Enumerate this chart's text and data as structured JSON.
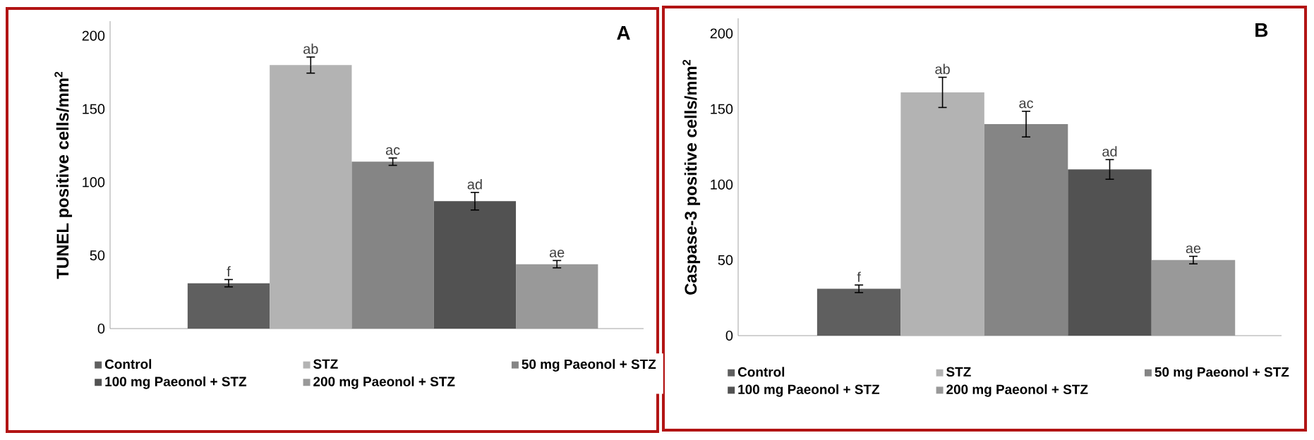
{
  "chart_data": [
    {
      "type": "bar",
      "ylabel": "TUNEL positive cells/mm$^{2}$",
      "annotations": [
        "A"
      ],
      "categories": [
        null
      ],
      "ylim": [
        0,
        210
      ],
      "yticks": [
        0,
        50,
        100,
        150,
        200
      ],
      "legend": "bottom",
      "series": [
        {
          "name": "Control",
          "color": "#5f5f5f",
          "values": [
            31
          ],
          "errors": [
            2.5
          ],
          "value_labels": [
            "f"
          ]
        },
        {
          "name": "STZ",
          "color": "#b3b3b3",
          "values": [
            180
          ],
          "errors": [
            5.5
          ],
          "value_labels": [
            "ab"
          ]
        },
        {
          "name": "50 mg Paeonol + STZ",
          "color": "#858585",
          "values": [
            114
          ],
          "errors": [
            2.5
          ],
          "value_labels": [
            "ac"
          ]
        },
        {
          "name": "100 mg Paeonol + STZ",
          "color": "#525252",
          "values": [
            87
          ],
          "errors": [
            6
          ],
          "value_labels": [
            "ad"
          ]
        },
        {
          "name": "200 mg Paeonol + STZ",
          "color": "#999999",
          "values": [
            44
          ],
          "errors": [
            2.5
          ],
          "value_labels": [
            "ae"
          ]
        }
      ]
    },
    {
      "type": "bar",
      "ylabel": "Caspase-3 positive cells/mm$^{2}$",
      "annotations": [
        "B"
      ],
      "categories": [
        null
      ],
      "ylim": [
        0,
        210
      ],
      "yticks": [
        0,
        50,
        100,
        150,
        200
      ],
      "legend": "bottom",
      "series": [
        {
          "name": "Control",
          "color": "#5f5f5f",
          "values": [
            31
          ],
          "errors": [
            2.5
          ],
          "value_labels": [
            "f"
          ]
        },
        {
          "name": "STZ",
          "color": "#b3b3b3",
          "values": [
            161
          ],
          "errors": [
            10
          ],
          "value_labels": [
            "ab"
          ]
        },
        {
          "name": "50 mg Paeonol + STZ",
          "color": "#858585",
          "values": [
            140
          ],
          "errors": [
            8.5
          ],
          "value_labels": [
            "ac"
          ]
        },
        {
          "name": "100 mg Paeonol + STZ",
          "color": "#525252",
          "values": [
            110
          ],
          "errors": [
            6.5
          ],
          "value_labels": [
            "ad"
          ]
        },
        {
          "name": "200 mg Paeonol + STZ",
          "color": "#999999",
          "values": [
            50
          ],
          "errors": [
            2.5
          ],
          "value_labels": [
            "ae"
          ]
        }
      ]
    }
  ]
}
